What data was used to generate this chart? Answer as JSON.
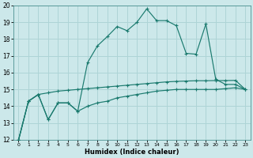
{
  "xlabel": "Humidex (Indice chaleur)",
  "background_color": "#cce8ea",
  "grid_color": "#aed4d6",
  "line_color": "#1a7a6e",
  "xlim": [
    -0.5,
    23.5
  ],
  "ylim": [
    12,
    20
  ],
  "xticks": [
    0,
    1,
    2,
    3,
    4,
    5,
    6,
    7,
    8,
    9,
    10,
    11,
    12,
    13,
    14,
    15,
    16,
    17,
    18,
    19,
    20,
    21,
    22,
    23
  ],
  "yticks": [
    12,
    13,
    14,
    15,
    16,
    17,
    18,
    19,
    20
  ],
  "s1_x": [
    0,
    1,
    2,
    3,
    4,
    5,
    6,
    7,
    8,
    9,
    10,
    11,
    12,
    13,
    14,
    15,
    16,
    17,
    18,
    19,
    20,
    21,
    22,
    23
  ],
  "s1_y": [
    12.0,
    14.3,
    14.7,
    14.8,
    14.9,
    14.95,
    15.0,
    15.05,
    15.1,
    15.15,
    15.2,
    15.25,
    15.3,
    15.35,
    15.4,
    15.45,
    15.48,
    15.5,
    15.52,
    15.52,
    15.53,
    15.53,
    15.54,
    15.0
  ],
  "s2_x": [
    0,
    1,
    2,
    3,
    4,
    5,
    6,
    7,
    8,
    9,
    10,
    11,
    12,
    13,
    14,
    15,
    16,
    17,
    18,
    19,
    20,
    21,
    22,
    23
  ],
  "s2_y": [
    12.0,
    14.3,
    14.7,
    13.2,
    14.2,
    14.2,
    13.7,
    14.0,
    14.2,
    14.3,
    14.5,
    14.6,
    14.7,
    14.8,
    14.9,
    14.95,
    15.0,
    15.0,
    15.0,
    15.0,
    15.0,
    15.05,
    15.1,
    15.0
  ],
  "s3_x": [
    0,
    1,
    2,
    3,
    4,
    5,
    6,
    7,
    8,
    9,
    10,
    11,
    12,
    13,
    14,
    15,
    16,
    17,
    18,
    19,
    20,
    21,
    22,
    23
  ],
  "s3_y": [
    12.0,
    14.3,
    14.7,
    13.2,
    14.2,
    14.2,
    13.7,
    16.6,
    17.6,
    18.15,
    18.75,
    18.5,
    19.0,
    19.8,
    19.1,
    19.1,
    18.8,
    17.15,
    17.1,
    18.9,
    15.6,
    15.3,
    15.3,
    15.0
  ]
}
